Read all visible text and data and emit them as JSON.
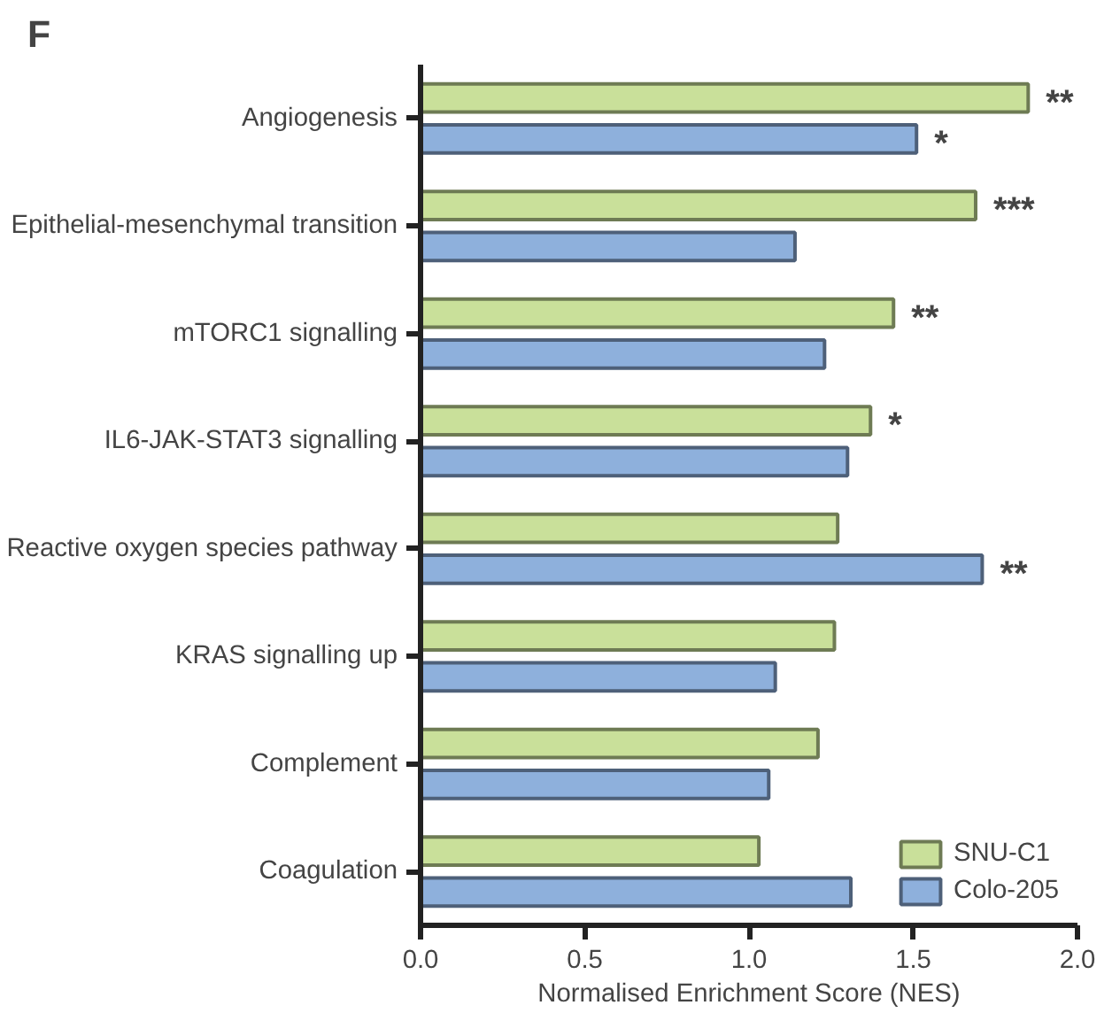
{
  "chart_data": {
    "type": "bar",
    "orientation": "horizontal",
    "title": "F",
    "xlabel": "Normalised Enrichment Score (NES)",
    "categories": [
      "Angiogenesis",
      "Epithelial-mesenchymal transition",
      "mTORC1 signalling",
      "IL6-JAK-STAT3 signalling",
      "Reactive oxygen species pathway",
      "KRAS signalling up",
      "Complement",
      "Coagulation"
    ],
    "series": [
      {
        "name": "SNU-C1",
        "color": "#c9e09a",
        "values": [
          1.85,
          1.69,
          1.44,
          1.37,
          1.27,
          1.26,
          1.21,
          1.03
        ]
      },
      {
        "name": "Colo-205",
        "color": "#8eb0dc",
        "values": [
          1.51,
          1.14,
          1.23,
          1.3,
          1.71,
          1.08,
          1.06,
          1.31
        ]
      }
    ],
    "xlim": [
      0,
      2.0
    ],
    "xticks": [
      {
        "value": 0,
        "label": "0.0"
      },
      {
        "value": 0.5,
        "label": "0.5"
      },
      {
        "value": 1,
        "label": "1.0"
      },
      {
        "value": 1.5,
        "label": "1.5"
      },
      {
        "value": 2,
        "label": "2.0"
      }
    ],
    "annotations": [
      {
        "text": "**",
        "x": 1.85,
        "y": "Angiogenesis"
      },
      {
        "text": "*",
        "x": 1.51,
        "y": "Angiogenesis"
      },
      {
        "text": "***",
        "x": 1.69,
        "y": "Epithelial-mesenchymal transition"
      },
      {
        "text": "**",
        "x": 1.44,
        "y": "mTORC1 signalling"
      },
      {
        "text": "*",
        "x": 1.37,
        "y": "IL6-JAK-STAT3 signalling"
      },
      {
        "text": "**",
        "x": 1.71,
        "y": "Reactive oxygen species pathway"
      }
    ],
    "grid": false,
    "legend": "bottom right"
  }
}
